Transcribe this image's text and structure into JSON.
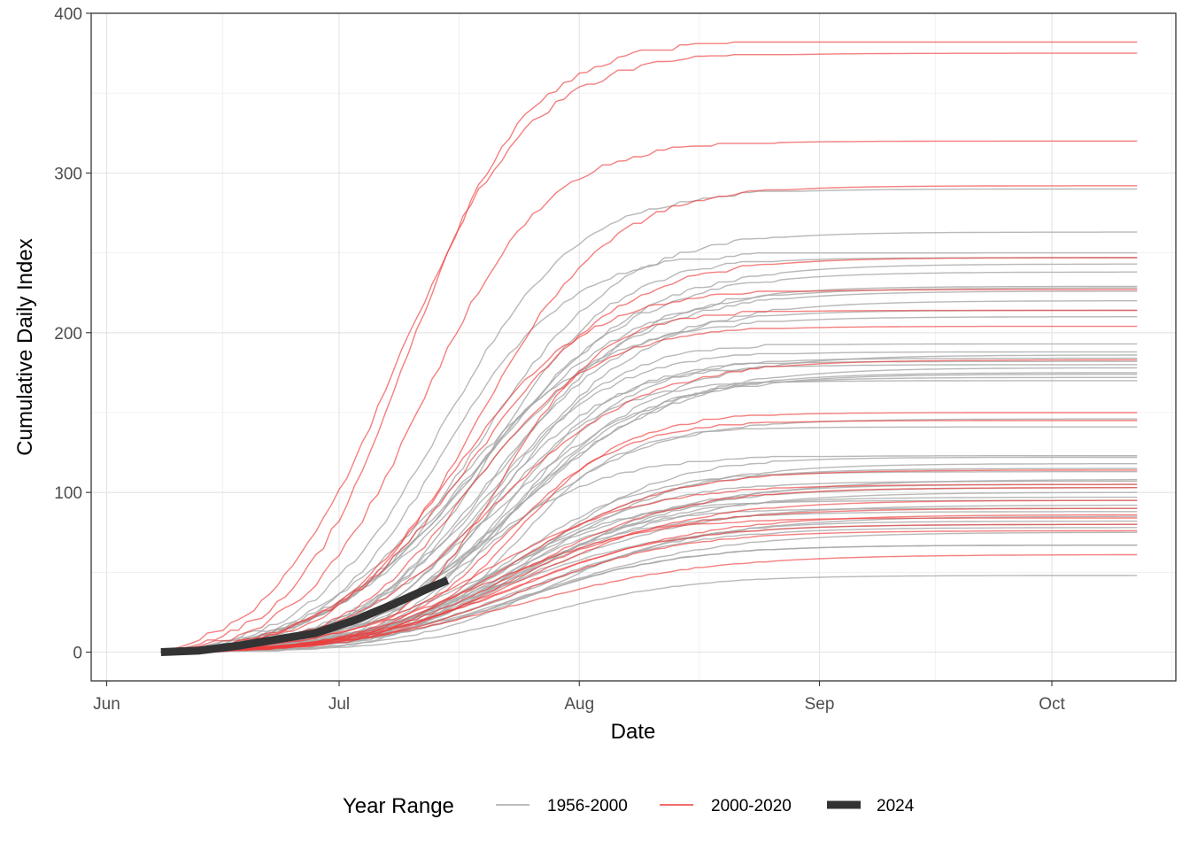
{
  "chart_data": {
    "type": "line",
    "title": "",
    "xlabel": "Date",
    "ylabel": "Cumulative Daily Index",
    "x_ticks": [
      "Jun",
      "Jul",
      "Aug",
      "Sep",
      "Oct"
    ],
    "y_ticks": [
      "0",
      "100",
      "200",
      "300",
      "400"
    ],
    "xlim": [
      "2024-05-30",
      "2024-10-17"
    ],
    "ylim": [
      -18,
      400
    ],
    "grid": true,
    "legend": {
      "title": "Year Range",
      "position": "bottom",
      "entries": [
        "1956-2000",
        "2000-2020",
        "2024"
      ]
    },
    "colors": {
      "1956-2000": "#a6a6a6",
      "2000-2020": "#ee3b3b",
      "2024": "#333333"
    },
    "series_group_1956_2000_finals": [
      48,
      67,
      67,
      75,
      78,
      80,
      82,
      85,
      88,
      90,
      92,
      95,
      97,
      100,
      103,
      105,
      107,
      108,
      113,
      115,
      118,
      122,
      123,
      141,
      146,
      170,
      172,
      174,
      175,
      178,
      180,
      182,
      184,
      186,
      188,
      193,
      210,
      214,
      220,
      226,
      228,
      229,
      238,
      243,
      247,
      250,
      263,
      290
    ],
    "series_group_2000_2020_finals": [
      61,
      76,
      80,
      84,
      86,
      90,
      95,
      103,
      105,
      114,
      145,
      150,
      183,
      204,
      214,
      227,
      247,
      292,
      320,
      375,
      382
    ],
    "series_2024": {
      "name": "2024",
      "x": [
        "2024-06-08",
        "2024-06-13",
        "2024-06-18",
        "2024-06-23",
        "2024-06-28",
        "2024-07-03",
        "2024-07-08",
        "2024-07-13",
        "2024-07-15"
      ],
      "y": [
        0,
        1,
        4,
        8,
        12,
        20,
        30,
        41,
        45
      ]
    }
  }
}
